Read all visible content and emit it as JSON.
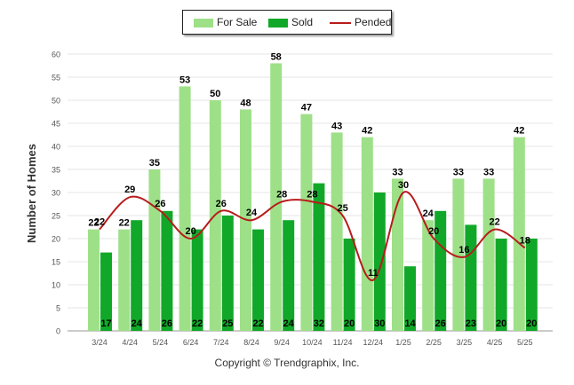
{
  "chart_data": {
    "type": "bar",
    "ylabel": "Number of Homes",
    "ylim": [
      0,
      60
    ],
    "yticks": [
      0,
      5,
      10,
      15,
      20,
      25,
      30,
      35,
      40,
      45,
      50,
      55,
      60
    ],
    "categories": [
      "3/24",
      "4/24",
      "5/24",
      "6/24",
      "7/24",
      "8/24",
      "9/24",
      "10/24",
      "11/24",
      "12/24",
      "1/25",
      "2/25",
      "3/25",
      "4/25",
      "5/25"
    ],
    "series": [
      {
        "name": "For Sale",
        "kind": "bar",
        "color": "#9ee088",
        "values": [
          22,
          22,
          35,
          53,
          50,
          48,
          58,
          47,
          43,
          42,
          33,
          24,
          33,
          33,
          42
        ]
      },
      {
        "name": "Sold",
        "kind": "bar",
        "color": "#11a829",
        "values": [
          17,
          24,
          26,
          22,
          25,
          22,
          24,
          32,
          20,
          30,
          14,
          26,
          23,
          20,
          20
        ]
      },
      {
        "name": "Pended",
        "kind": "line",
        "color": "#b71c1c",
        "values": [
          22,
          29,
          26,
          20,
          26,
          24,
          28,
          28,
          25,
          11,
          30,
          20,
          16,
          22,
          18
        ]
      }
    ],
    "legend_position": "top-center",
    "grid": true
  },
  "footer": "Copyright © Trendgraphix, Inc."
}
